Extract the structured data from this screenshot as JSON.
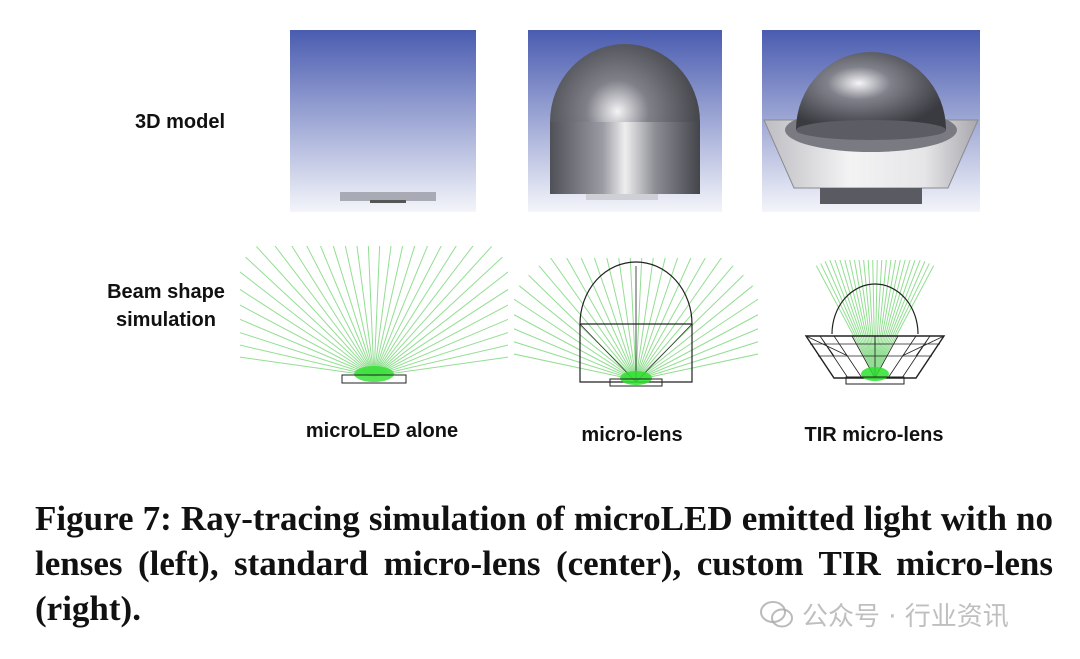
{
  "row_labels": {
    "model": "3D model",
    "beam_line1": "Beam shape",
    "beam_line2": "simulation"
  },
  "column_labels": [
    "microLED alone",
    "micro-lens",
    "TIR micro-lens"
  ],
  "caption": "Figure 7: Ray-tracing simulation of microLED emitted light with no lenses (left), standard micro-lens (center), custom TIR micro-lens (right).",
  "watermark": "公众号 · 行业资讯"
}
